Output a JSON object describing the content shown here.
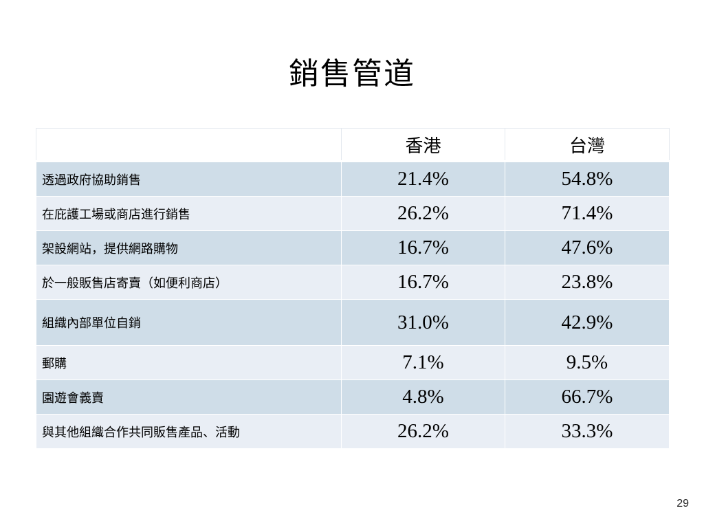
{
  "slide": {
    "title": "銷售管道",
    "page_number": "29"
  },
  "table": {
    "header": {
      "blank": "",
      "col_hk": "香港",
      "col_tw": "台灣"
    },
    "rows": [
      {
        "label": "透過政府協助銷售",
        "hk": "21.4%",
        "tw": "54.8%"
      },
      {
        "label": "在庇護工場或商店進行銷售",
        "hk": "26.2%",
        "tw": "71.4%"
      },
      {
        "label": "架設網站，提供網路購物",
        "hk": "16.7%",
        "tw": "47.6%"
      },
      {
        "label": "於一般販售店寄賣（如便利商店）",
        "hk": "16.7%",
        "tw": "23.8%"
      },
      {
        "label": "組織內部單位自銷",
        "hk": "31.0%",
        "tw": "42.9%"
      },
      {
        "label": "郵購",
        "hk": "7.1%",
        "tw": "9.5%"
      },
      {
        "label": "園遊會義賣",
        "hk": "4.8%",
        "tw": "66.7%"
      },
      {
        "label": "與其他組織合作共同販售產品、活動",
        "hk": "26.2%",
        "tw": "33.3%"
      }
    ]
  },
  "colors": {
    "row_dark": "#cfdde8",
    "row_light": "#e9eef5"
  }
}
